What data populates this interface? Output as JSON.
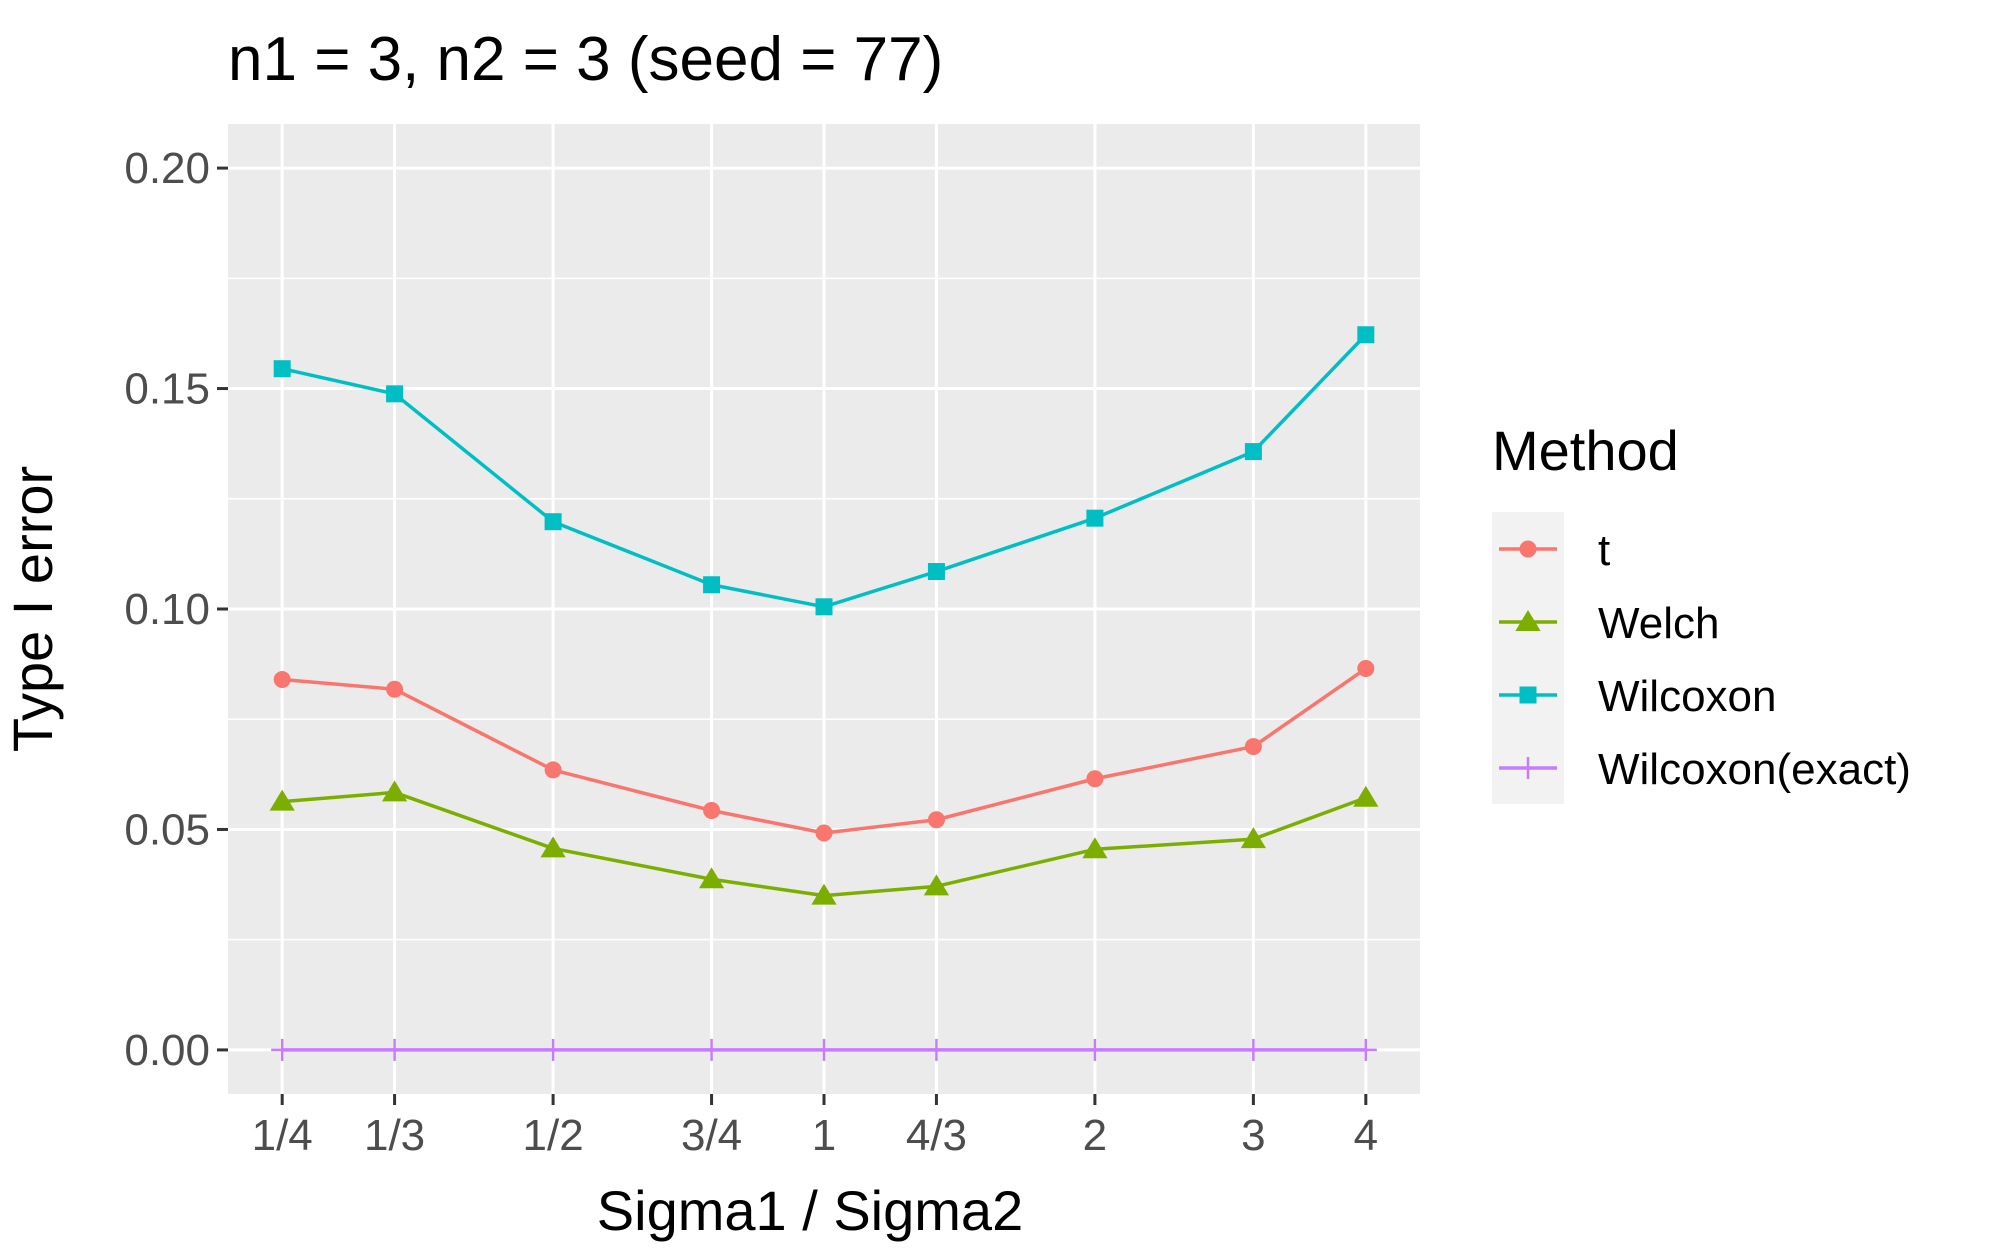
{
  "chart_data": {
    "type": "line",
    "title": "n1 = 3, n2 = 3 (seed = 77)",
    "xlabel": "Sigma1 / Sigma2",
    "ylabel": "Type I error",
    "x_scale": "log",
    "categories": [
      "1/4",
      "1/3",
      "1/2",
      "3/4",
      "1",
      "4/3",
      "2",
      "3",
      "4"
    ],
    "x": [
      0.25,
      0.3333,
      0.5,
      0.75,
      1,
      1.3333,
      2,
      3,
      4
    ],
    "ylim": [
      -0.01,
      0.21
    ],
    "yticks": [
      0.0,
      0.05,
      0.1,
      0.15,
      0.2
    ],
    "ytick_labels": [
      "0.00",
      "0.05",
      "0.10",
      "0.15",
      "0.20"
    ],
    "grid": true,
    "legend": {
      "title": "Method",
      "position": "right"
    },
    "series": [
      {
        "name": "t",
        "color": "#F8766D",
        "marker": "circle",
        "values": [
          0.084,
          0.0818,
          0.0635,
          0.0543,
          0.0492,
          0.0522,
          0.0615,
          0.0688,
          0.0865
        ]
      },
      {
        "name": "Welch",
        "color": "#7CAE00",
        "marker": "triangle",
        "values": [
          0.0563,
          0.0584,
          0.0457,
          0.0387,
          0.035,
          0.0371,
          0.0455,
          0.0478,
          0.0572
        ]
      },
      {
        "name": "Wilcoxon",
        "color": "#00BFC4",
        "marker": "square",
        "values": [
          0.1545,
          0.1488,
          0.1198,
          0.1055,
          0.1005,
          0.1085,
          0.1206,
          0.1357,
          0.1622
        ]
      },
      {
        "name": "Wilcoxon(exact)",
        "color": "#C77CFF",
        "marker": "plus",
        "values": [
          0,
          0,
          0,
          0,
          0,
          0,
          0,
          0,
          0
        ]
      }
    ]
  }
}
